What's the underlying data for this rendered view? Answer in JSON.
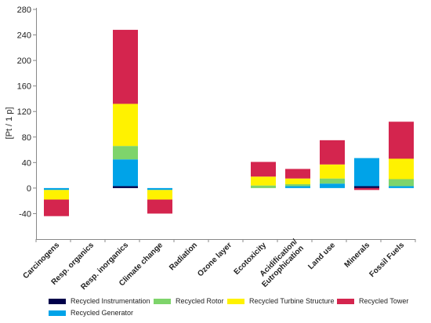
{
  "chart_data": {
    "type": "bar",
    "stacked": true,
    "ylabel": "[Pt / 1 p]",
    "ylim": [
      -80,
      280
    ],
    "yticks": [
      -40,
      0,
      40,
      80,
      120,
      160,
      200,
      240,
      280
    ],
    "grid": false,
    "legend_position": "bottom",
    "categories": [
      "Carcinogens",
      "Resp. organics",
      "Resp. inorganics",
      "Climate change",
      "Radiation",
      "Ozone layer",
      "Ecotoxicity",
      "Acidification/ Eutrophication",
      "Land use",
      "Minerals",
      "Fossil Fuels"
    ],
    "series": [
      {
        "name": "Recycled Instrumentation",
        "color": "#00004a",
        "values": [
          0,
          0,
          3,
          0,
          0,
          0,
          0,
          0,
          0,
          3,
          0
        ]
      },
      {
        "name": "Recycled Generator",
        "color": "#00a3e8",
        "values": [
          -3,
          0,
          42,
          -3,
          0,
          0,
          0,
          3,
          7,
          44,
          3
        ]
      },
      {
        "name": "Recycled Rotor",
        "color": "#7ed46b",
        "values": [
          0,
          0,
          21,
          0,
          0,
          0,
          4,
          3,
          8,
          0,
          11
        ]
      },
      {
        "name": "Recycled Turbine Structure",
        "color": "#fff200",
        "values": [
          -15,
          0,
          66,
          -15,
          0,
          0,
          14,
          9,
          22,
          0,
          32
        ]
      },
      {
        "name": "Recycled Tower",
        "color": "#d4254e",
        "values": [
          -26,
          0,
          116,
          -22,
          0,
          0,
          23,
          15,
          38,
          -3,
          58
        ]
      }
    ]
  },
  "legend": [
    {
      "label": "Recycled Instrumentation",
      "color": "#00004a"
    },
    {
      "label": "Recycled Rotor",
      "color": "#7ed46b"
    },
    {
      "label": "Recycled Turbine Structure",
      "color": "#fff200"
    },
    {
      "label": "Recycled Tower",
      "color": "#d4254e"
    },
    {
      "label": "Recycled Generator",
      "color": "#00a3e8"
    }
  ]
}
